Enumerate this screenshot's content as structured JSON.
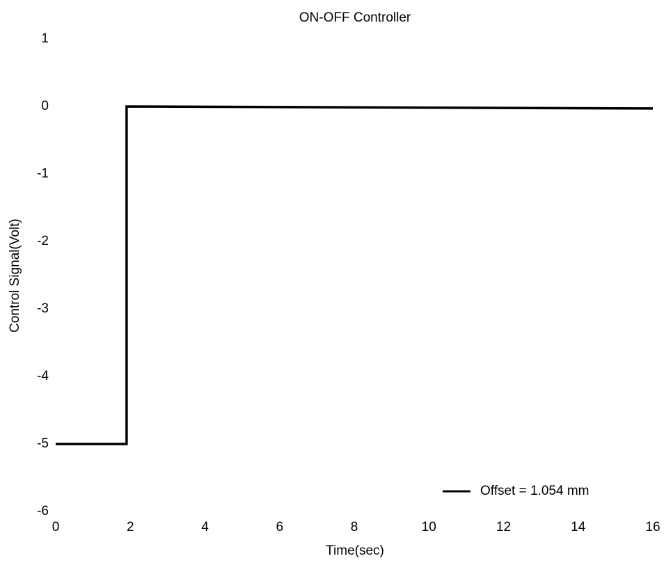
{
  "chart_data": {
    "type": "line",
    "title": "ON-OFF Controller",
    "x_label": "Time(sec)",
    "y_label": "Control Signal(Volt)",
    "x": [
      0,
      1.9,
      1.9,
      16
    ],
    "series": [
      {
        "name": "Offset = 1.054 mm",
        "color": "#000000",
        "values": [
          -5,
          -5,
          0,
          -0.03
        ]
      }
    ],
    "xlim": [
      0,
      16
    ],
    "xticks": [
      0,
      2,
      4,
      6,
      8,
      10,
      12,
      14,
      16
    ],
    "ylim": [
      -6,
      1
    ],
    "yticks": [
      -6,
      -5,
      -4,
      -3,
      -2,
      -1,
      0,
      1
    ],
    "grid": false,
    "legend": "lower right"
  }
}
